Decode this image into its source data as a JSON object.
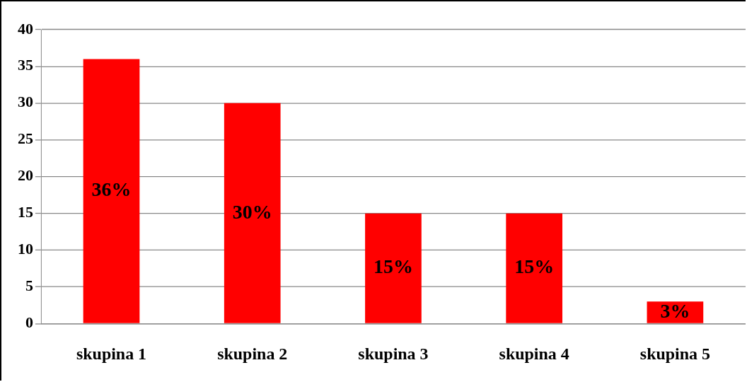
{
  "chart_data": {
    "type": "bar",
    "categories": [
      "skupina 1",
      "skupina 2",
      "skupina 3",
      "skupina 4",
      "skupina 5"
    ],
    "values": [
      36,
      30,
      15,
      15,
      3
    ],
    "value_labels": [
      "36%",
      "30%",
      "15%",
      "15%",
      "3%"
    ],
    "color": "#ff0000",
    "ylim": [
      0,
      40
    ],
    "yticks": [
      0,
      5,
      10,
      15,
      20,
      25,
      30,
      35,
      40
    ],
    "grid": "y",
    "legend": false
  }
}
